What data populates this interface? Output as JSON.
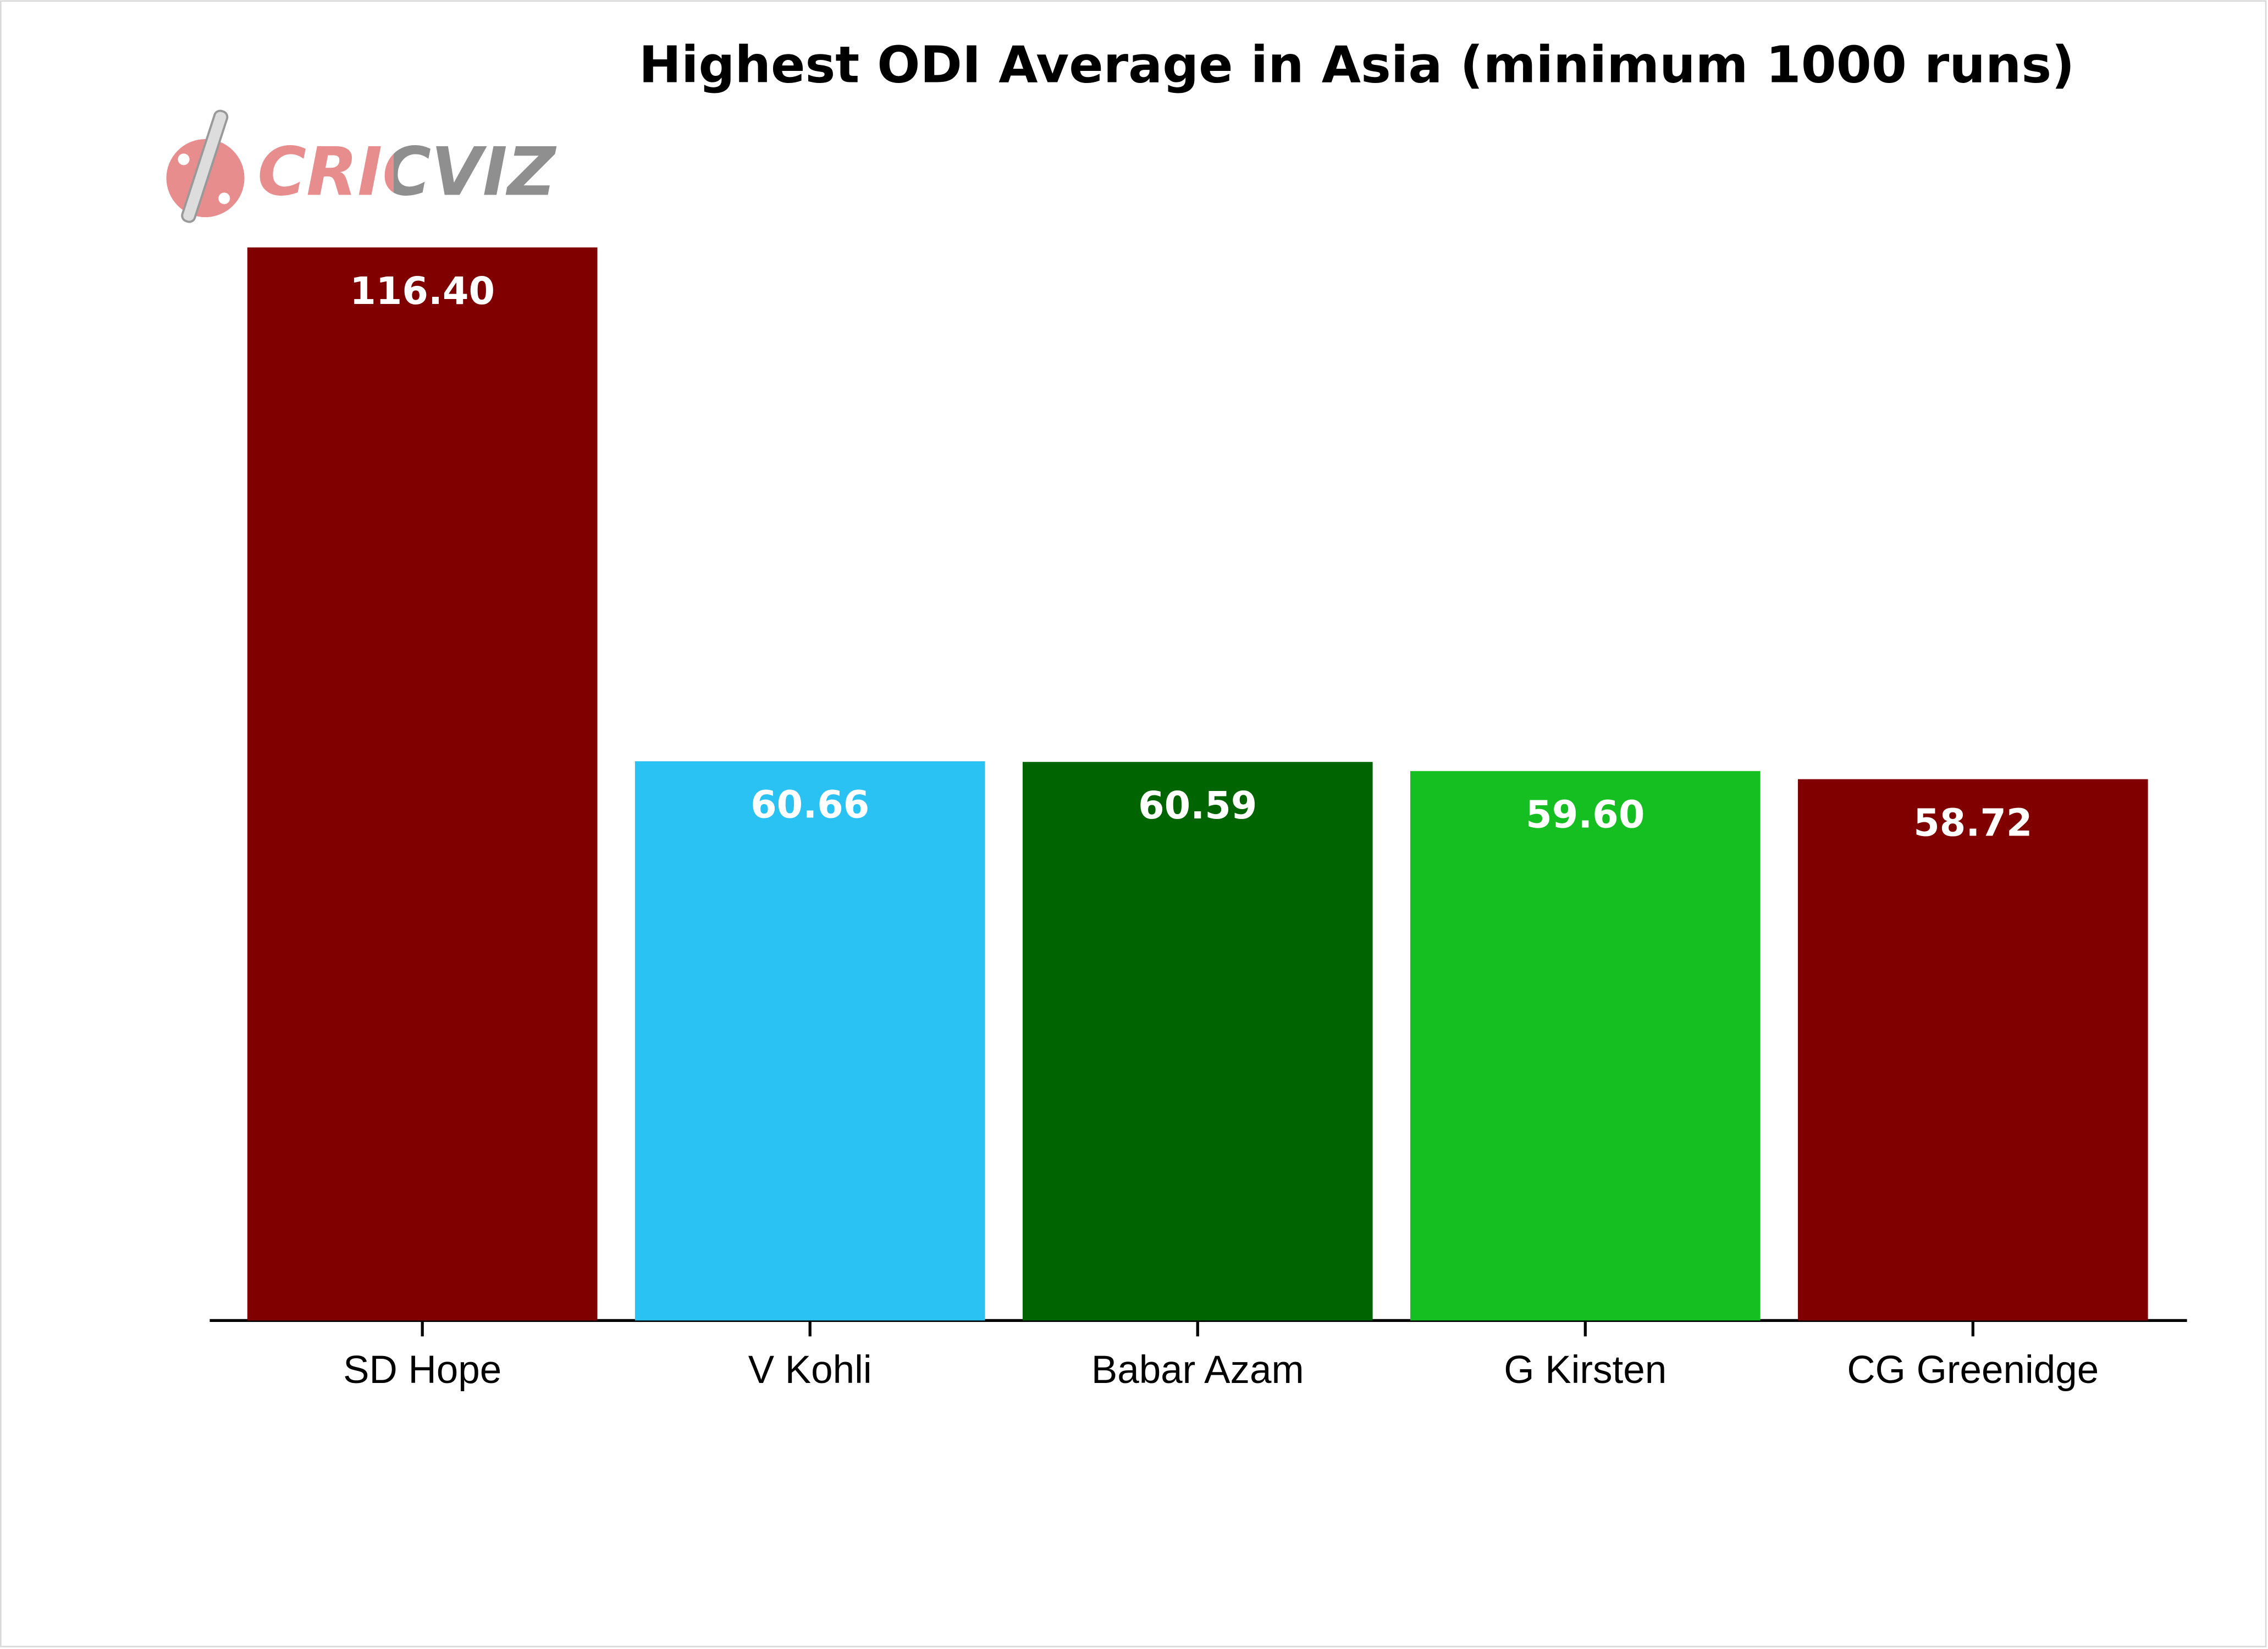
{
  "chart_data": {
    "type": "bar",
    "title": "Highest ODI Average in Asia (minimum 1000 runs)",
    "logo": "CRICVIZ",
    "categories": [
      "SD Hope",
      "V Kohli",
      "Babar Azam",
      "G Kirsten",
      "CG Greenidge"
    ],
    "values": [
      116.4,
      60.66,
      60.59,
      59.6,
      58.72
    ],
    "value_labels": [
      "116.40",
      "60.66",
      "60.59",
      "59.60",
      "58.72"
    ],
    "colors": [
      "#800000",
      "#29c2f2",
      "#006400",
      "#16bf21",
      "#800000"
    ],
    "ylim": [
      0,
      120
    ],
    "grid": false
  }
}
